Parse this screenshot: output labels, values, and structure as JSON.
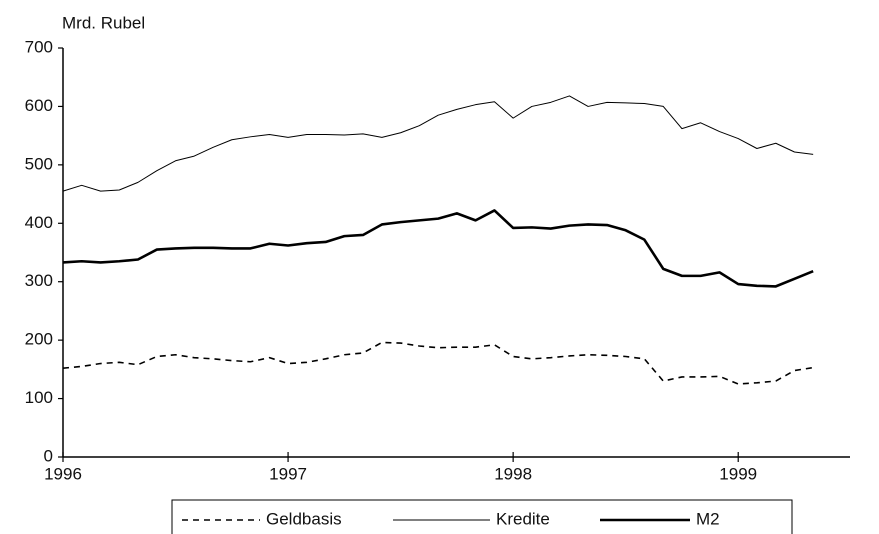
{
  "chart_data": {
    "type": "line",
    "y_label": "Mrd. Rubel",
    "x": [
      1996,
      1996.083,
      1996.167,
      1996.25,
      1996.333,
      1996.417,
      1996.5,
      1996.583,
      1996.667,
      1996.75,
      1996.833,
      1996.917,
      1997,
      1997.083,
      1997.167,
      1997.25,
      1997.333,
      1997.417,
      1997.5,
      1997.583,
      1997.667,
      1997.75,
      1997.833,
      1997.917,
      1998,
      1998.083,
      1998.167,
      1998.25,
      1998.333,
      1998.417,
      1998.5,
      1998.583,
      1998.667,
      1998.75,
      1998.833,
      1998.917,
      1999,
      1999.083,
      1999.167,
      1999.25,
      1999.333
    ],
    "series": [
      {
        "name": "Geldbasis",
        "color": "#000000",
        "line_width": 1.6,
        "dashed": true,
        "values": [
          152,
          155,
          160,
          162,
          158,
          172,
          175,
          170,
          168,
          165,
          163,
          170,
          160,
          162,
          168,
          175,
          178,
          196,
          195,
          190,
          187,
          188,
          188,
          192,
          172,
          168,
          170,
          173,
          175,
          174,
          172,
          168,
          130,
          137,
          137,
          138,
          125,
          127,
          130,
          148,
          153
        ]
      },
      {
        "name": "Kredite",
        "color": "#000000",
        "line_width": 1,
        "dashed": false,
        "values": [
          455,
          465,
          455,
          457,
          470,
          490,
          507,
          515,
          530,
          543,
          548,
          552,
          547,
          552,
          552,
          551,
          553,
          547,
          555,
          567,
          585,
          595,
          603,
          608,
          580,
          600,
          607,
          618,
          600,
          607,
          606,
          605,
          600,
          562,
          572,
          557,
          545,
          528,
          537,
          522,
          518
        ]
      },
      {
        "name": "M2",
        "color": "#000000",
        "line_width": 2.6,
        "dashed": false,
        "values": [
          333,
          335,
          333,
          335,
          338,
          355,
          357,
          358,
          358,
          357,
          357,
          365,
          362,
          366,
          368,
          378,
          380,
          398,
          402,
          405,
          408,
          417,
          405,
          422,
          392,
          393,
          391,
          396,
          398,
          397,
          388,
          372,
          322,
          310,
          310,
          316,
          296,
          293,
          292,
          305,
          318
        ]
      }
    ],
    "xlim": [
      1996,
      1999.55
    ],
    "xticks": [
      1996,
      1997,
      1998,
      1999
    ],
    "ylim": [
      0,
      700
    ],
    "yticks": [
      0,
      100,
      200,
      300,
      400,
      500,
      600,
      700
    ],
    "legend": "bottom"
  }
}
